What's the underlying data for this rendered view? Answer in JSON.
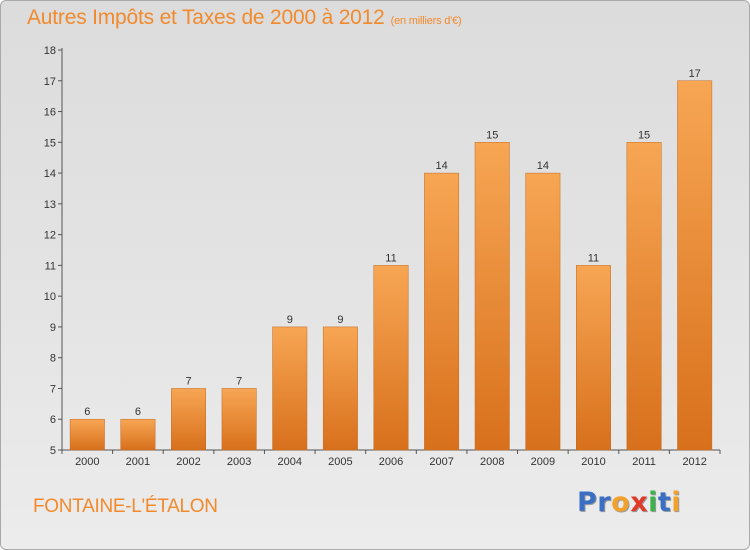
{
  "title": "Autres Impôts et Taxes de 2000 à 2012",
  "subtitle": "(en milliers d'€)",
  "place": "FONTAINE-L'ÉTALON",
  "logo": {
    "letters": [
      "P",
      "r",
      "o",
      "x",
      "i",
      "t",
      "i"
    ],
    "colors": [
      "#3b6fc4",
      "#3b6fc4",
      "#f2a12c",
      "#e03a2a",
      "#3bb34a",
      "#3b6fc4",
      "#f2a12c"
    ]
  },
  "colors": {
    "bar_top": "#f7a654",
    "bar_bottom": "#d8701c",
    "title": "#f28a2c"
  },
  "chart_data": {
    "type": "bar",
    "title": "Autres Impôts et Taxes de 2000 à 2012",
    "subtitle": "(en milliers d'€)",
    "xlabel": "",
    "ylabel": "",
    "categories": [
      "2000",
      "2001",
      "2002",
      "2003",
      "2004",
      "2005",
      "2006",
      "2007",
      "2008",
      "2009",
      "2010",
      "2011",
      "2012"
    ],
    "values": [
      6,
      6,
      7,
      7,
      9,
      9,
      11,
      14,
      15,
      14,
      11,
      15,
      17
    ],
    "ylim": [
      5,
      18
    ],
    "yticks": [
      5,
      6,
      7,
      8,
      9,
      10,
      11,
      12,
      13,
      14,
      15,
      16,
      17,
      18
    ],
    "grid": false,
    "legend": "none"
  }
}
